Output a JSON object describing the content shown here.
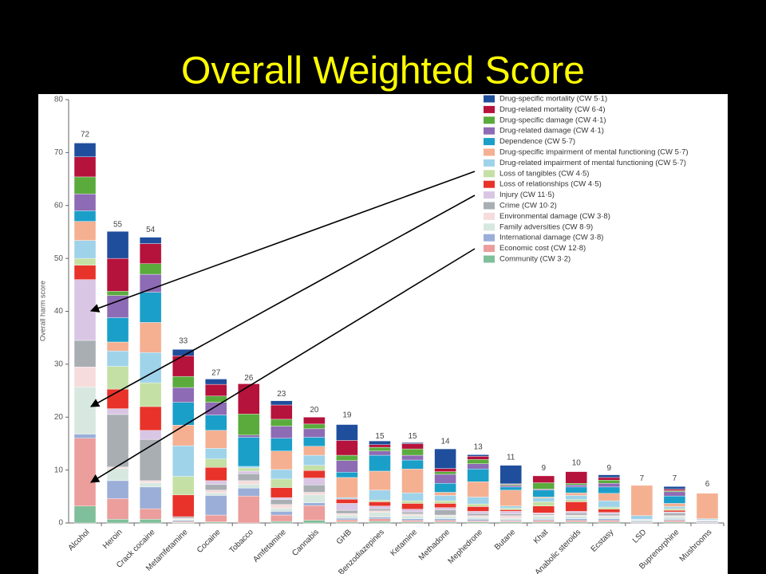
{
  "chart_data": {
    "type": "stacked_bar",
    "title": "Overall Weighted Score",
    "y_label": "Overall harm score",
    "categories": [
      "Alcohol",
      "Heroin",
      "Crack cocaine",
      "Metamfetamine",
      "Cocaine",
      "Tobacco",
      "Amfetamine",
      "Cannabis",
      "GHB",
      "Benzodiazepines",
      "Ketamine",
      "Methadone",
      "Mephedrone",
      "Butane",
      "Khat",
      "Anabolic steroids",
      "Ecstasy",
      "LSD",
      "Buprenorphine",
      "Mushrooms"
    ],
    "totals": [
      72,
      55,
      54,
      33,
      27,
      26,
      23,
      20,
      19,
      15,
      15,
      14,
      13,
      11,
      9,
      10,
      9,
      7,
      7,
      6
    ],
    "ylim": [
      0,
      80
    ],
    "yticks": [
      0,
      10,
      20,
      30,
      40,
      50,
      60,
      70,
      80
    ],
    "series": [
      {
        "name": "Drug-specific mortality (CW 5·1)",
        "color": "#1f4e9c",
        "values": [
          2.6,
          5.1,
          1.2,
          1.2,
          1.0,
          0,
          0.8,
          0,
          3.0,
          0.7,
          0.2,
          3.7,
          0.3,
          3.5,
          0,
          0,
          0.5,
          0,
          0.5,
          0
        ]
      },
      {
        "name": "Drug-related mortality (CW 6·4)",
        "color": "#b5123c",
        "values": [
          3.8,
          6.2,
          3.8,
          3.9,
          2.2,
          5.7,
          2.7,
          1.3,
          2.8,
          0.5,
          1.0,
          0.6,
          0.6,
          0.1,
          1.3,
          2.2,
          0.5,
          0,
          0.3,
          0
        ]
      },
      {
        "name": "Drug-specific damage (CW 4·1)",
        "color": "#5aab3c",
        "values": [
          3.2,
          0.8,
          2.0,
          2.1,
          1.2,
          4.0,
          1.3,
          0.9,
          1.0,
          0.7,
          1.2,
          0.5,
          0.8,
          0.2,
          1.2,
          0.3,
          0.6,
          0,
          0.2,
          0
        ]
      },
      {
        "name": "Drug-related damage (CW 4·1)",
        "color": "#8e6bb5",
        "values": [
          3.2,
          4.2,
          3.4,
          2.8,
          2.4,
          0.4,
          2.3,
          1.6,
          2.2,
          0.8,
          0.9,
          1.7,
          1.0,
          0.3,
          0.2,
          0.4,
          0.7,
          0,
          0.8,
          0
        ]
      },
      {
        "name": "Dependence (CW 5·7)",
        "color": "#1a9fc9",
        "values": [
          2.0,
          4.6,
          5.7,
          4.3,
          2.9,
          5.5,
          2.4,
          1.7,
          1.0,
          3.0,
          1.7,
          1.7,
          2.4,
          0.6,
          1.3,
          1.1,
          1.2,
          0,
          1.4,
          0
        ]
      },
      {
        "name": "Drug-specific impairment of mental functioning (CW 5·7)",
        "color": "#f5b092",
        "values": [
          3.6,
          1.7,
          5.7,
          3.9,
          3.4,
          0,
          3.5,
          1.7,
          3.8,
          3.6,
          4.5,
          0.6,
          2.9,
          3.0,
          0.2,
          0.5,
          1.4,
          5.7,
          0.6,
          4.8
        ]
      },
      {
        "name": "Drug-related impairment of mental functioning (CW 5·7)",
        "color": "#9fd3ea",
        "values": [
          3.4,
          2.9,
          5.7,
          5.8,
          2.0,
          0.3,
          1.8,
          1.9,
          0.3,
          1.9,
          1.5,
          1.0,
          1.3,
          0.4,
          0.7,
          0.8,
          1.2,
          0.7,
          0.4,
          0.2
        ]
      },
      {
        "name": "Loss of tangibles (CW 4·5)",
        "color": "#c5e0a5",
        "values": [
          1.3,
          4.3,
          4.5,
          3.5,
          1.6,
          0.6,
          1.6,
          1.0,
          0,
          0.3,
          0.5,
          0.5,
          0.5,
          0.3,
          0.8,
          0.4,
          0.4,
          0,
          0.3,
          0
        ]
      },
      {
        "name": "Loss of relationships (CW 4·5)",
        "color": "#e8332a",
        "values": [
          2.7,
          3.7,
          4.5,
          4.1,
          2.5,
          0,
          1.9,
          1.4,
          0.8,
          0.8,
          1.1,
          0.8,
          0.9,
          0.3,
          1.3,
          1.8,
          0.6,
          0,
          0.3,
          0
        ]
      },
      {
        "name": "Injury (CW 11·5)",
        "color": "#d9c6e4",
        "values": [
          11.5,
          1.1,
          1.7,
          0,
          0.7,
          0.5,
          0.4,
          1.3,
          1.3,
          0.5,
          0.5,
          0.4,
          0.4,
          0.5,
          0.2,
          0.3,
          0.3,
          0.1,
          0.2,
          0.1
        ]
      },
      {
        "name": "Crime (CW 10·2)",
        "color": "#a9aeb3",
        "values": [
          5.0,
          9.9,
          7.8,
          0.3,
          1.1,
          1.3,
          0.9,
          1.4,
          0.6,
          0.4,
          0.4,
          1.0,
          0.4,
          0.3,
          0.2,
          0.4,
          0.3,
          0,
          0.5,
          0
        ]
      },
      {
        "name": "Environmental damage (CW 3·8)",
        "color": "#f6dcdc",
        "values": [
          3.8,
          0.3,
          0.4,
          0.2,
          0.5,
          0.7,
          0.7,
          0.5,
          0.3,
          0.3,
          0.3,
          0.2,
          0.3,
          0.5,
          0.2,
          0.2,
          0.2,
          0,
          0.2,
          0
        ]
      },
      {
        "name": "Family adversities (CW 8·9)",
        "color": "#d7e8e0",
        "values": [
          8.9,
          2.3,
          0.8,
          0.2,
          0.5,
          0.7,
          0.6,
          1.5,
          0.6,
          0.9,
          0.6,
          0.5,
          0.4,
          0.3,
          0.6,
          0.5,
          0.4,
          0.3,
          0.5,
          0.2
        ]
      },
      {
        "name": "International damage (CW 3·8)",
        "color": "#9aaed8",
        "values": [
          0.8,
          3.4,
          4.1,
          0.2,
          3.7,
          1.5,
          0.7,
          0.5,
          0.3,
          0.3,
          0.3,
          0.3,
          0.3,
          0.2,
          0.2,
          0.3,
          0.3,
          0.2,
          0.2,
          0.2
        ]
      },
      {
        "name": "Economic cost (CW 12·8)",
        "color": "#eb9e9c",
        "values": [
          12.8,
          3.9,
          2.0,
          0.2,
          1.3,
          5.1,
          1.2,
          2.8,
          0.4,
          0.5,
          0.3,
          0.3,
          0.2,
          0.2,
          0.3,
          0.3,
          0.3,
          0.1,
          0.3,
          0.1
        ]
      },
      {
        "name": "Community (CW 3·2)",
        "color": "#7fbf9a",
        "values": [
          3.2,
          0.7,
          0.7,
          0.1,
          0.2,
          0,
          0.3,
          0.5,
          0.2,
          0.3,
          0.2,
          0.2,
          0.2,
          0.2,
          0.2,
          0.2,
          0.2,
          0,
          0.2,
          0
        ]
      }
    ]
  }
}
